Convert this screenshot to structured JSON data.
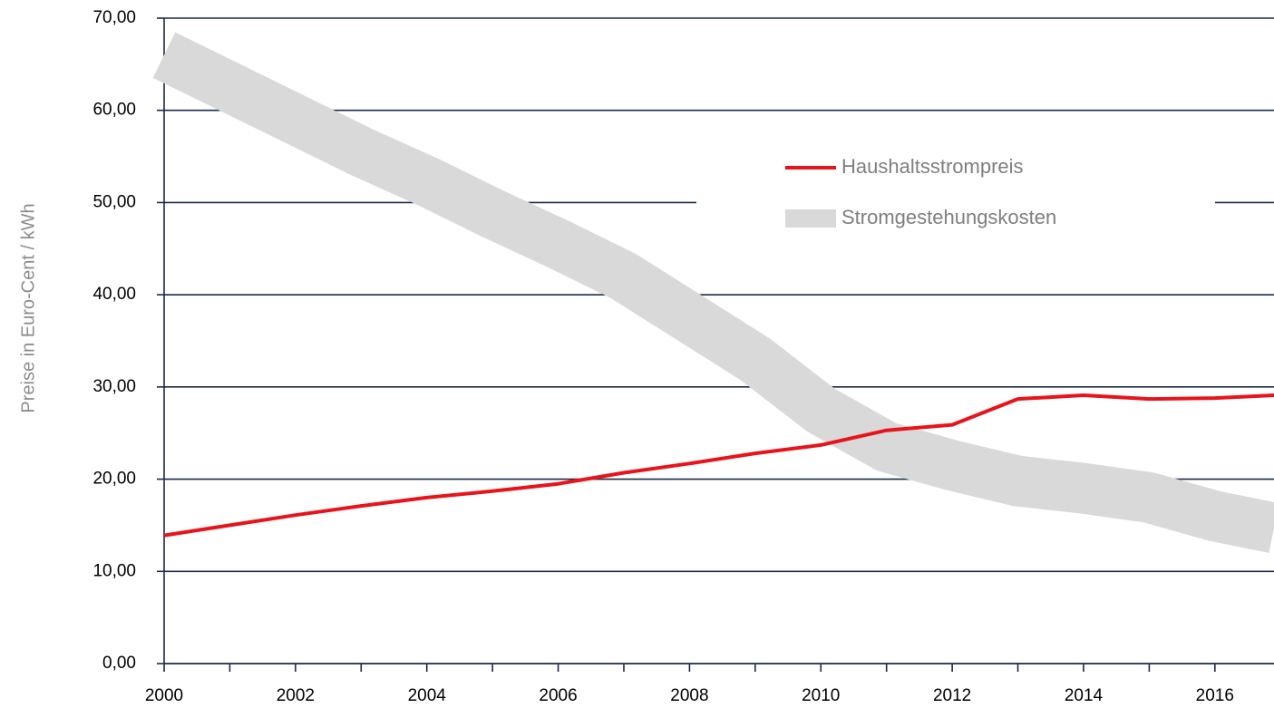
{
  "chart_data": {
    "type": "line",
    "y_label": "Preise in Euro-Cent / kWh",
    "xlim": [
      2000,
      2016.9
    ],
    "xticks": [
      2000,
      2002,
      2004,
      2006,
      2008,
      2010,
      2012,
      2014,
      2016
    ],
    "xminor_ticks": [
      2001,
      2003,
      2005,
      2007,
      2009,
      2011,
      2013,
      2015
    ],
    "ylim": [
      0,
      70
    ],
    "yticks": [
      {
        "value": 0,
        "label": "0,00"
      },
      {
        "value": 10,
        "label": "10,00"
      },
      {
        "value": 20,
        "label": "20,00"
      },
      {
        "value": 30,
        "label": "30,00"
      },
      {
        "value": 40,
        "label": "40,00"
      },
      {
        "value": 50,
        "label": "50,00"
      },
      {
        "value": 60,
        "label": "60,00"
      },
      {
        "value": 70,
        "label": "70,00"
      }
    ],
    "grid": true,
    "legend": "upper right",
    "x": [
      2000,
      2001,
      2002,
      2003,
      2004,
      2005,
      2006,
      2007,
      2008,
      2009,
      2010,
      2011,
      2012,
      2013,
      2014,
      2015,
      2016,
      2016.9
    ],
    "series": [
      {
        "name": "Haushaltsstrompreis",
        "color": "#e8141b",
        "values": [
          13.9,
          15.0,
          16.1,
          17.1,
          18.0,
          18.7,
          19.5,
          20.7,
          21.7,
          22.8,
          23.7,
          25.3,
          25.9,
          28.7,
          29.1,
          28.7,
          28.8,
          29.1
        ]
      },
      {
        "name": "Stromgestehungskosten",
        "color": "#d9d9d9",
        "values": [
          66.0,
          62.5,
          59.0,
          55.5,
          52.3,
          48.8,
          45.5,
          42.0,
          37.5,
          33.0,
          27.5,
          23.5,
          21.5,
          19.8,
          19.0,
          18.0,
          16.0,
          14.7
        ]
      }
    ]
  }
}
